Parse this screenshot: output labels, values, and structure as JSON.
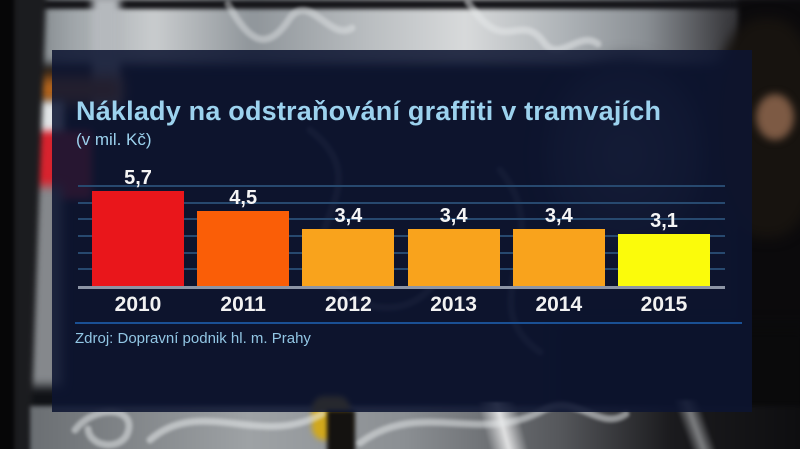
{
  "header": {
    "title": "Náklady na odstraňování graffiti v tramvajích",
    "subtitle": "(v mil. Kč)"
  },
  "footer": {
    "source": "Zdroj: Dopravní podnik hl. m. Prahy"
  },
  "chart_data": {
    "type": "bar",
    "title": "Náklady na odstraňování graffiti v tramvajích",
    "subtitle": "(v mil. Kč)",
    "source": "Zdroj: Dopravní podnik hl. m. Prahy",
    "unit": "mil. Kč",
    "categories": [
      "2010",
      "2011",
      "2012",
      "2013",
      "2014",
      "2015"
    ],
    "values": [
      5.7,
      4.5,
      3.4,
      3.4,
      3.4,
      3.1
    ],
    "value_labels": [
      "5,7",
      "4,5",
      "3,4",
      "3,4",
      "3,4",
      "3,1"
    ],
    "bar_colors": [
      "#e9161b",
      "#fa5e07",
      "#f9a31c",
      "#f9a31c",
      "#f9a31c",
      "#fbfb0b"
    ],
    "ylim": [
      0,
      6
    ],
    "gridline_values": [
      1,
      2,
      3,
      4,
      5,
      6
    ],
    "grid": true,
    "legend": false,
    "xlabel": "",
    "ylabel": ""
  },
  "colors": {
    "panel": "#0d1531",
    "title_text": "#9cd2ee",
    "label_text": "#f5f5f5",
    "gridline": "#27496f",
    "baseline": "#8d95a5",
    "separator": "#1a5094"
  }
}
